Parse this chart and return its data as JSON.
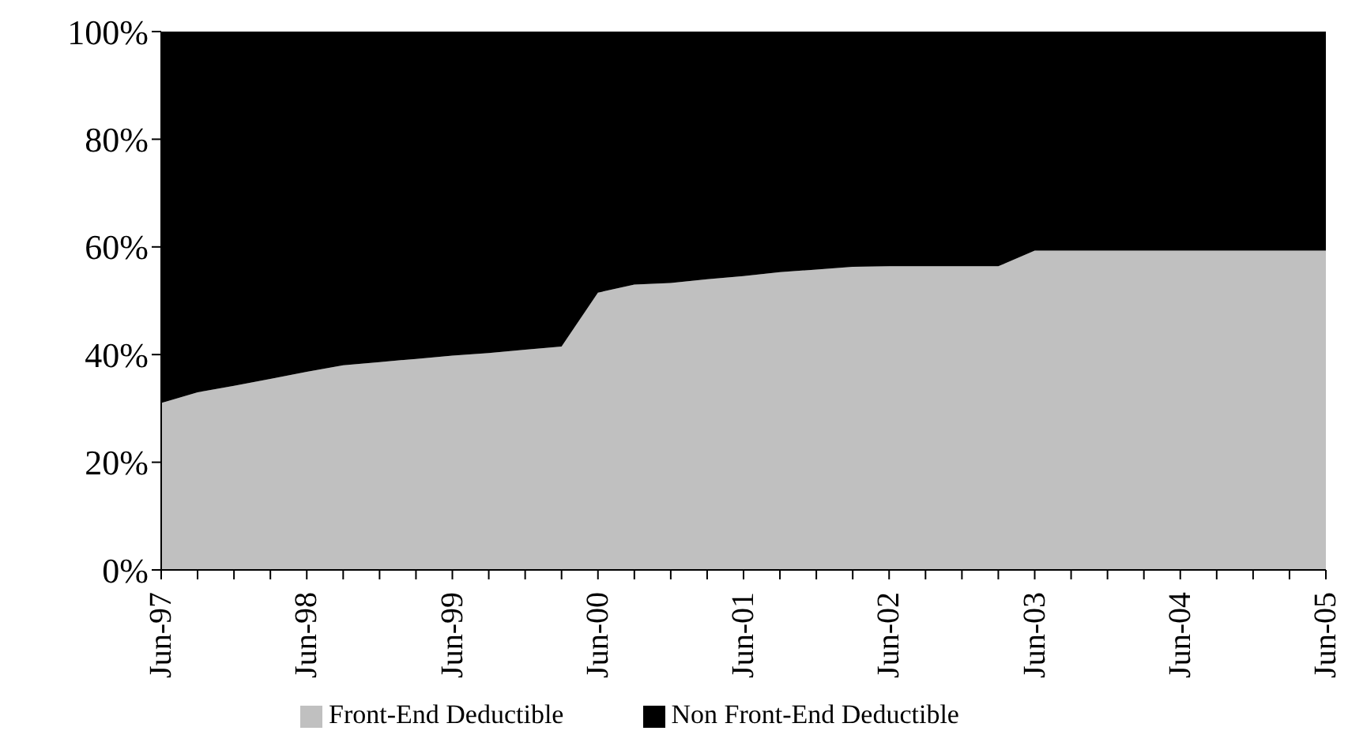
{
  "chart_data": {
    "type": "area",
    "stacked": true,
    "categories": [
      "Jun-97",
      null,
      null,
      null,
      "Jun-98",
      null,
      null,
      null,
      "Jun-99",
      null,
      null,
      null,
      "Jun-00",
      null,
      null,
      null,
      "Jun-01",
      null,
      null,
      null,
      "Jun-02",
      null,
      null,
      null,
      "Jun-03",
      null,
      null,
      null,
      "Jun-04",
      null,
      null,
      null,
      "Jun-05"
    ],
    "series": [
      {
        "name": "Front-End Deductible",
        "color": "#c0c0c0",
        "values": [
          31,
          33,
          34.2,
          35.5,
          36.8,
          38,
          38.6,
          39.2,
          39.8,
          40.3,
          40.9,
          41.5,
          51.5,
          53,
          53.3,
          54,
          54.6,
          55.3,
          55.8,
          56.3,
          56.4,
          56.4,
          56.4,
          56.4,
          59.3,
          59.3,
          59.3,
          59.3,
          59.3,
          59.3,
          59.3,
          59.3,
          59.3
        ]
      },
      {
        "name": "Non Front-End Deductible",
        "color": "#000000",
        "values": [
          69,
          67,
          65.8,
          64.5,
          63.2,
          62,
          61.4,
          60.8,
          60.2,
          59.7,
          59.1,
          58.5,
          48.5,
          47,
          46.7,
          46,
          45.4,
          44.7,
          44.2,
          43.7,
          43.6,
          43.6,
          43.6,
          43.6,
          40.7,
          40.7,
          40.7,
          40.7,
          40.7,
          40.7,
          40.7,
          40.7,
          40.7
        ]
      }
    ],
    "ylim": [
      0,
      100
    ],
    "yticks": [
      {
        "value": 0,
        "label": "0%"
      },
      {
        "value": 20,
        "label": "20%"
      },
      {
        "value": 40,
        "label": "40%"
      },
      {
        "value": 60,
        "label": "60%"
      },
      {
        "value": 80,
        "label": "80%"
      },
      {
        "value": 100,
        "label": "100%"
      }
    ],
    "grid": false,
    "legend": "bottom"
  }
}
